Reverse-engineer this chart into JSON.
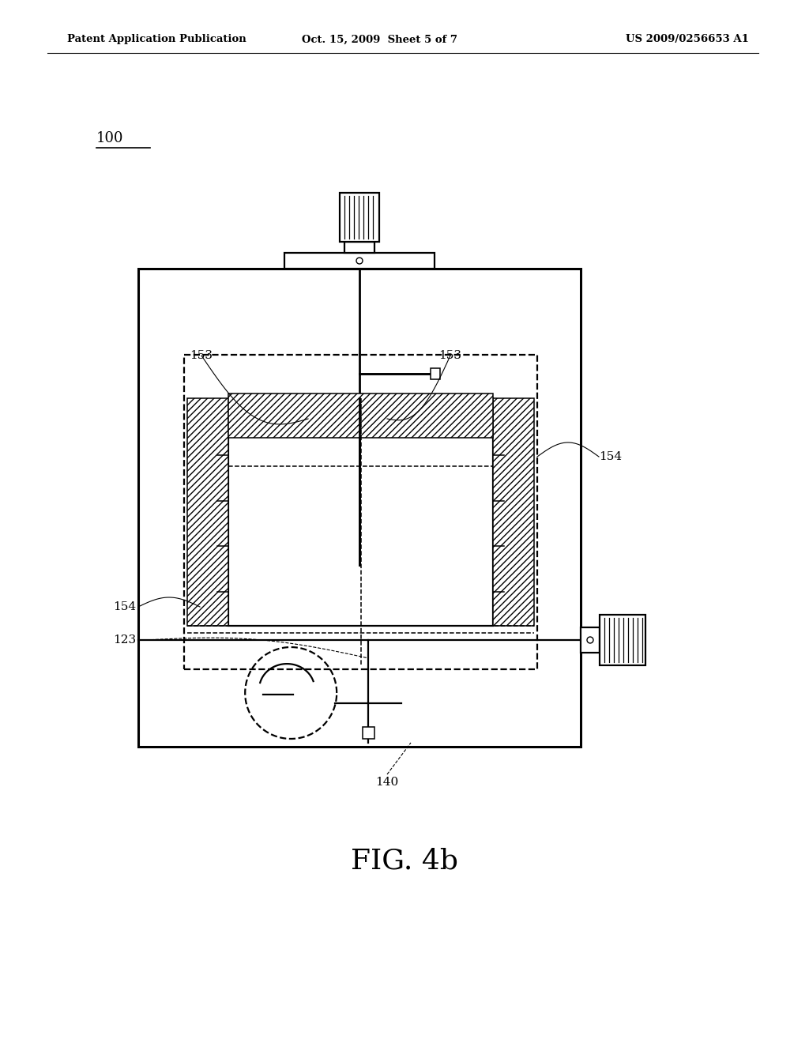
{
  "bg_color": "#ffffff",
  "line_color": "#000000",
  "header_left": "Patent Application Publication",
  "header_center": "Oct. 15, 2009  Sheet 5 of 7",
  "header_right": "US 2009/0256653 A1",
  "label_100": "100",
  "label_153_left": "153",
  "label_153_right": "153",
  "label_154_right": "154",
  "label_154_left": "154",
  "label_123": "123",
  "label_140": "140",
  "fig_caption": "FIG. 4b"
}
